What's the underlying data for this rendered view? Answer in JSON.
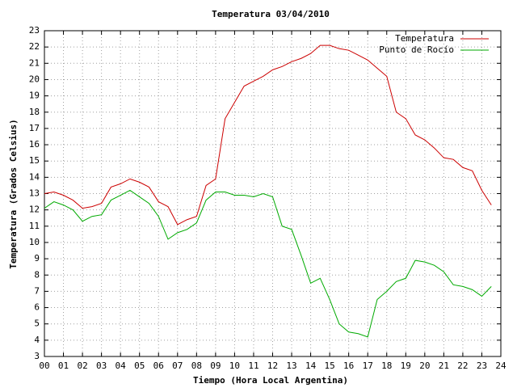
{
  "chart_data": {
    "type": "line",
    "title": "Temperatura 03/04/2010",
    "x_label": "Tiempo (Hora Local Argentina)",
    "y_label": "Temperatura (Grados Celsius)",
    "x": [
      0,
      0.5,
      1,
      1.5,
      2,
      2.5,
      3,
      3.5,
      4,
      4.5,
      5,
      5.5,
      6,
      6.5,
      7,
      7.5,
      8,
      8.5,
      9,
      9.5,
      10,
      10.5,
      11,
      11.5,
      12,
      12.5,
      13,
      13.5,
      14,
      14.5,
      15,
      15.5,
      16,
      16.5,
      17,
      17.5,
      18,
      18.5,
      19,
      19.5,
      20,
      20.5,
      21,
      21.5,
      22,
      22.5,
      23,
      23.5
    ],
    "series": [
      {
        "name": "Temperatura",
        "color": "#cc0000",
        "values": [
          13.0,
          13.1,
          12.9,
          12.6,
          12.1,
          12.2,
          12.4,
          13.4,
          13.6,
          13.9,
          13.7,
          13.4,
          12.5,
          12.2,
          11.1,
          11.4,
          11.6,
          13.5,
          13.9,
          17.6,
          18.6,
          19.6,
          19.9,
          20.2,
          20.6,
          20.8,
          21.1,
          21.3,
          21.6,
          22.1,
          22.1,
          21.9,
          21.8,
          21.5,
          21.2,
          20.7,
          20.2,
          18.0,
          17.6,
          16.6,
          16.3,
          15.8,
          15.2,
          15.1,
          14.6,
          14.4,
          13.2,
          12.3
        ]
      },
      {
        "name": "Punto de Rocío",
        "color": "#00aa00",
        "values": [
          12.1,
          12.5,
          12.3,
          12.0,
          11.3,
          11.6,
          11.7,
          12.6,
          12.9,
          13.2,
          12.8,
          12.4,
          11.6,
          10.2,
          10.6,
          10.8,
          11.2,
          12.6,
          13.1,
          13.1,
          12.9,
          12.9,
          12.8,
          13.0,
          12.8,
          11.0,
          10.8,
          9.2,
          7.5,
          7.8,
          6.5,
          5.0,
          4.5,
          4.4,
          4.2,
          6.5,
          7.0,
          7.6,
          7.8,
          8.9,
          8.8,
          8.6,
          8.2,
          7.4,
          7.3,
          7.1,
          6.7,
          7.3
        ]
      }
    ],
    "xlim": [
      0,
      24
    ],
    "xticks": [
      {
        "value": 0,
        "label": "00"
      },
      {
        "value": 1,
        "label": "01"
      },
      {
        "value": 2,
        "label": "02"
      },
      {
        "value": 3,
        "label": "03"
      },
      {
        "value": 4,
        "label": "04"
      },
      {
        "value": 5,
        "label": "05"
      },
      {
        "value": 6,
        "label": "06"
      },
      {
        "value": 7,
        "label": "07"
      },
      {
        "value": 8,
        "label": "08"
      },
      {
        "value": 9,
        "label": "09"
      },
      10,
      11,
      12,
      13,
      14,
      15,
      16,
      17,
      18,
      19,
      20,
      21,
      22,
      23,
      24
    ],
    "ylim": [
      3,
      23
    ],
    "yticks": [
      3,
      4,
      5,
      6,
      7,
      8,
      9,
      10,
      11,
      12,
      13,
      14,
      15,
      16,
      17,
      18,
      19,
      20,
      21,
      22,
      23
    ],
    "grid": true,
    "legend": "top-right"
  }
}
